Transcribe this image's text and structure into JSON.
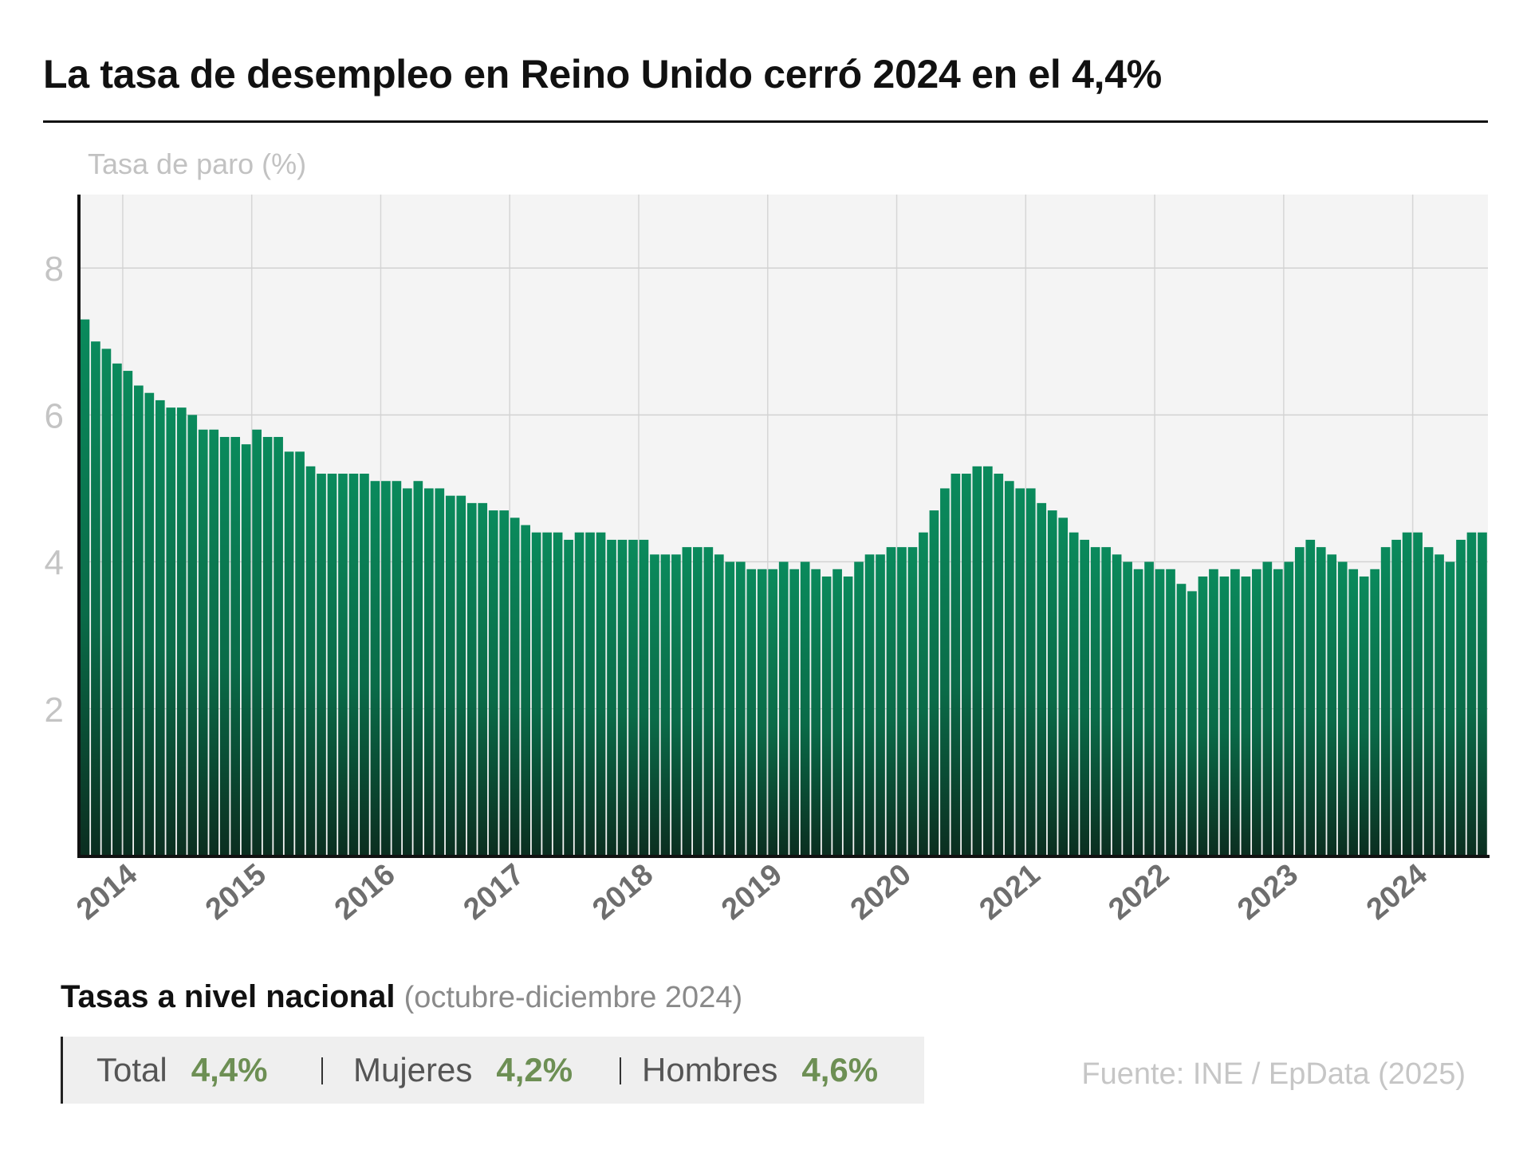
{
  "title": "La tasa de desempleo en Reino Unido cerró 2024 en el 4,4%",
  "chart_data": {
    "type": "bar",
    "title": "La tasa de desempleo en Reino Unido cerró 2024 en el 4,4%",
    "ylabel": "Tasa de paro (%)",
    "ylim": [
      0,
      9
    ],
    "yticks": [
      2,
      4,
      6,
      8
    ],
    "grid": true,
    "x_start": "2013-09",
    "frequency": "monthly",
    "xtick_labels": [
      "2014",
      "2015",
      "2016",
      "2017",
      "2018",
      "2019",
      "2020",
      "2021",
      "2022",
      "2023",
      "2024"
    ],
    "values": [
      7.3,
      7.0,
      6.9,
      6.7,
      6.6,
      6.4,
      6.3,
      6.2,
      6.1,
      6.1,
      6.0,
      5.8,
      5.8,
      5.7,
      5.7,
      5.6,
      5.8,
      5.7,
      5.7,
      5.5,
      5.5,
      5.3,
      5.2,
      5.2,
      5.2,
      5.2,
      5.2,
      5.1,
      5.1,
      5.1,
      5.0,
      5.1,
      5.0,
      5.0,
      4.9,
      4.9,
      4.8,
      4.8,
      4.7,
      4.7,
      4.6,
      4.5,
      4.4,
      4.4,
      4.4,
      4.3,
      4.4,
      4.4,
      4.4,
      4.3,
      4.3,
      4.3,
      4.3,
      4.1,
      4.1,
      4.1,
      4.2,
      4.2,
      4.2,
      4.1,
      4.0,
      4.0,
      3.9,
      3.9,
      3.9,
      4.0,
      3.9,
      4.0,
      3.9,
      3.8,
      3.9,
      3.8,
      4.0,
      4.1,
      4.1,
      4.2,
      4.2,
      4.2,
      4.4,
      4.7,
      5.0,
      5.2,
      5.2,
      5.3,
      5.3,
      5.2,
      5.1,
      5.0,
      5.0,
      4.8,
      4.7,
      4.6,
      4.4,
      4.3,
      4.2,
      4.2,
      4.1,
      4.0,
      3.9,
      4.0,
      3.9,
      3.9,
      3.7,
      3.6,
      3.8,
      3.9,
      3.8,
      3.9,
      3.8,
      3.9,
      4.0,
      3.9,
      4.0,
      4.2,
      4.3,
      4.2,
      4.1,
      4.0,
      3.9,
      3.8,
      3.9,
      4.2,
      4.3,
      4.4,
      4.4,
      4.2,
      4.1,
      4.0,
      4.3,
      4.4,
      4.4
    ],
    "colors": {
      "bar_top": "#0a8a5c",
      "bar_bottom": "#0b2e20",
      "plot_bg": "#f4f4f4"
    }
  },
  "stats": {
    "heading": "Tasas a nivel nacional",
    "period": "(octubre-diciembre 2024)",
    "items": [
      {
        "label": "Total",
        "value": "4,4%"
      },
      {
        "label": "Mujeres",
        "value": "4,2%"
      },
      {
        "label": "Hombres",
        "value": "4,6%"
      }
    ]
  },
  "source": "Fuente: INE / EpData (2025)"
}
